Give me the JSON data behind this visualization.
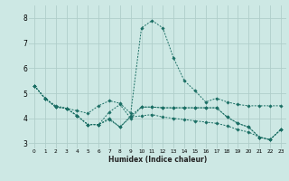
{
  "xlabel": "Humidex (Indice chaleur)",
  "bg_color": "#cde8e4",
  "grid_color": "#b0ceca",
  "line_color": "#1a6e64",
  "xlim": [
    -0.5,
    23.5
  ],
  "ylim": [
    2.8,
    8.5
  ],
  "yticks": [
    3,
    4,
    5,
    6,
    7,
    8
  ],
  "xticks": [
    0,
    1,
    2,
    3,
    4,
    5,
    6,
    7,
    8,
    9,
    10,
    11,
    12,
    13,
    14,
    15,
    16,
    17,
    18,
    19,
    20,
    21,
    22,
    23
  ],
  "lines": [
    {
      "x": [
        0,
        1,
        2,
        3,
        4,
        5,
        6,
        7,
        8,
        9,
        10,
        11,
        12,
        13,
        14,
        15,
        16,
        17,
        18,
        19,
        20,
        21,
        22,
        23
      ],
      "y": [
        5.3,
        4.8,
        4.5,
        4.4,
        4.3,
        4.2,
        4.5,
        4.7,
        4.6,
        4.2,
        7.6,
        7.9,
        7.6,
        6.4,
        5.5,
        5.1,
        4.65,
        4.8,
        4.65,
        4.55,
        4.5,
        4.5,
        4.5,
        4.5
      ]
    },
    {
      "x": [
        0,
        1,
        2,
        3,
        4,
        5,
        6,
        7,
        8,
        9,
        10,
        11,
        12,
        13,
        14,
        15,
        16,
        17,
        18,
        19,
        20,
        21,
        22,
        23
      ],
      "y": [
        5.3,
        4.8,
        4.45,
        4.4,
        4.1,
        3.75,
        3.75,
        4.0,
        3.65,
        4.1,
        4.45,
        4.45,
        4.42,
        4.42,
        4.42,
        4.42,
        4.42,
        4.42,
        4.05,
        3.8,
        3.65,
        3.25,
        3.15,
        3.55
      ]
    },
    {
      "x": [
        0,
        1,
        2,
        3,
        4,
        5,
        6,
        7,
        8,
        9,
        10,
        11,
        12,
        13,
        14,
        15,
        16,
        17,
        18,
        19,
        20,
        21,
        22,
        23
      ],
      "y": [
        5.3,
        4.8,
        4.45,
        4.4,
        4.1,
        3.75,
        3.75,
        4.25,
        4.55,
        4.0,
        4.45,
        4.45,
        4.42,
        4.42,
        4.42,
        4.42,
        4.42,
        4.42,
        4.05,
        3.8,
        3.65,
        3.25,
        3.15,
        3.55
      ]
    },
    {
      "x": [
        0,
        1,
        2,
        3,
        4,
        5,
        6,
        7,
        8,
        9,
        10,
        11,
        12,
        13,
        14,
        15,
        16,
        17,
        18,
        19,
        20,
        21,
        22,
        23
      ],
      "y": [
        5.3,
        4.8,
        4.45,
        4.4,
        4.1,
        3.75,
        3.75,
        3.95,
        3.65,
        4.05,
        4.1,
        4.15,
        4.05,
        4.0,
        3.95,
        3.9,
        3.85,
        3.8,
        3.7,
        3.55,
        3.45,
        3.25,
        3.15,
        3.55
      ]
    }
  ]
}
